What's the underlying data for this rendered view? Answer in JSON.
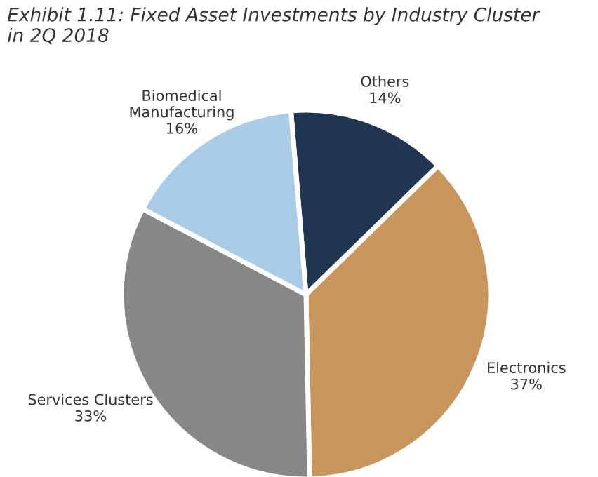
{
  "chart_data": {
    "type": "pie",
    "title": "Exhibit 1.11: Fixed Asset Investments by Industry Cluster\nin 2Q 2018",
    "categories": [
      "Others",
      "Electronics",
      "Services Clusters",
      "Biomedical\nManufacturing"
    ],
    "values": [
      14,
      37,
      33,
      16
    ],
    "colors": [
      "#1f3550",
      "#c8955a",
      "#878787",
      "#a9cbe6"
    ],
    "value_labels": [
      "14%",
      "37%",
      "33%",
      "16%"
    ]
  }
}
